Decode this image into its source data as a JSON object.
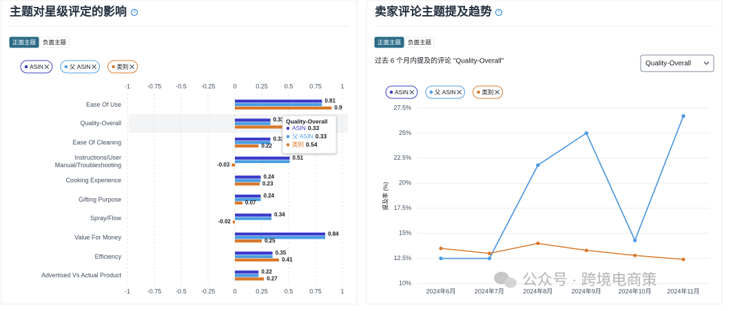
{
  "chart_data": [
    {
      "type": "hbar",
      "title": "主题对星级评定的影响",
      "tabs": [
        "正面主题",
        "负面主题"
      ],
      "categories": [
        "Ease Of Use",
        "Quality-Overall",
        "Ease Of Cleaning",
        "Instructions/User Manual/Troubleshooting",
        "Cooking Experience",
        "Gifting Purpose",
        "Spray/Flow",
        "Value For Money",
        "Efficiency",
        "Advertised Vs Actual Product"
      ],
      "series": [
        {
          "name": "ASIN",
          "color": "#3b3bc9",
          "data_labels": true,
          "values": [
            0.81,
            0.33,
            0.33,
            0.51,
            0.24,
            0.24,
            0.34,
            0.84,
            0.35,
            0.22
          ]
        },
        {
          "name": "父 ASIN",
          "color": "#4a9de3",
          "data_labels": false,
          "values": [
            0.81,
            0.33,
            0.33,
            0.51,
            0.24,
            0.24,
            0.34,
            0.84,
            0.35,
            0.22
          ]
        },
        {
          "name": "类别",
          "color": "#d9792b",
          "data_labels": true,
          "values": [
            0.9,
            0.54,
            0.22,
            -0.03,
            0.23,
            0.07,
            -0.02,
            0.25,
            0.41,
            0.27
          ]
        }
      ],
      "xlim": [
        -1,
        1
      ],
      "xticks": [
        -1,
        -0.75,
        -0.5,
        -0.25,
        0,
        0.25,
        0.5,
        0.75,
        1
      ],
      "grid": true
    },
    {
      "type": "line",
      "title": "卖家评论主题提及趋势",
      "tabs": [
        "正面主题",
        "负面主题"
      ],
      "subtitle": "过去 6 个月内提及的评论 \"Quality-Overall\"",
      "dropdown": "Quality-Overall",
      "y_label": "提及率 (%)",
      "categories": [
        "2024年6月",
        "2024年7月",
        "2024年8月",
        "2024年9月",
        "2024年10月",
        "2024年11月"
      ],
      "series": [
        {
          "name": "ASIN",
          "color": "#3b3bc9",
          "marker": "circle",
          "values": [
            12.5,
            12.5,
            21.8,
            25.0,
            14.3,
            26.7
          ]
        },
        {
          "name": "父 ASIN",
          "color": "#4a9de3",
          "marker": "diamond",
          "values": [
            12.5,
            12.5,
            21.8,
            25.0,
            14.3,
            26.7
          ]
        },
        {
          "name": "类别",
          "color": "#d9792b",
          "marker": "square",
          "values": [
            13.5,
            13.0,
            14.0,
            13.3,
            12.8,
            12.4
          ]
        }
      ],
      "ylim": [
        10,
        27.5
      ],
      "yticks": [
        {
          "value": 10,
          "label": "10%"
        },
        {
          "value": 12.5,
          "label": "12.5%"
        },
        {
          "value": 15,
          "label": "15%"
        },
        {
          "value": 17.5,
          "label": "17.5%"
        },
        {
          "value": 20,
          "label": "20%"
        },
        {
          "value": 22.5,
          "label": "22.5%"
        },
        {
          "value": 25,
          "label": "25%"
        },
        {
          "value": 27.5,
          "label": "27.5%"
        }
      ],
      "grid": true
    }
  ],
  "watermark": "公众号 · 跨境电商策"
}
